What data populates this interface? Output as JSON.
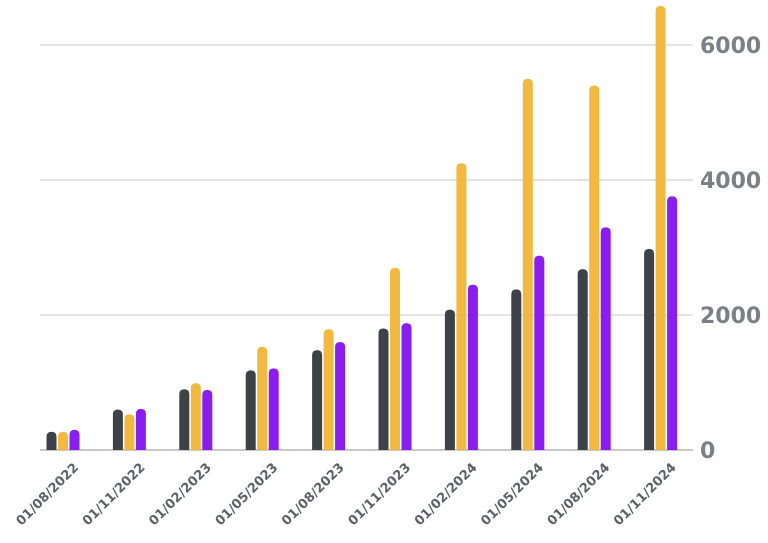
{
  "chart_data": {
    "type": "bar",
    "title": "",
    "xlabel": "",
    "ylabel": "",
    "categories": [
      "01/08/2022",
      "01/11/2022",
      "01/02/2023",
      "01/05/2023",
      "01/08/2023",
      "01/11/2023",
      "01/02/2024",
      "01/05/2024",
      "01/08/2024",
      "01/11/2024"
    ],
    "series": [
      {
        "color": "#3d4148",
        "values": [
          270,
          600,
          900,
          1180,
          1480,
          1800,
          2080,
          2380,
          2680,
          2980
        ]
      },
      {
        "color": "#f2b941",
        "values": [
          270,
          530,
          990,
          1530,
          1790,
          2700,
          4250,
          5500,
          5400,
          6580
        ]
      },
      {
        "color": "#8a1df0",
        "values": [
          300,
          610,
          890,
          1210,
          1600,
          1880,
          2450,
          2880,
          3300,
          3760
        ]
      }
    ],
    "ylim": [
      0,
      6600
    ],
    "yticks": [
      0,
      2000,
      4000,
      6000
    ],
    "ytick_labels": [
      "0",
      "2000",
      "4000",
      "6000"
    ],
    "y_axis_side": "right",
    "grid": true,
    "legend": "none"
  }
}
